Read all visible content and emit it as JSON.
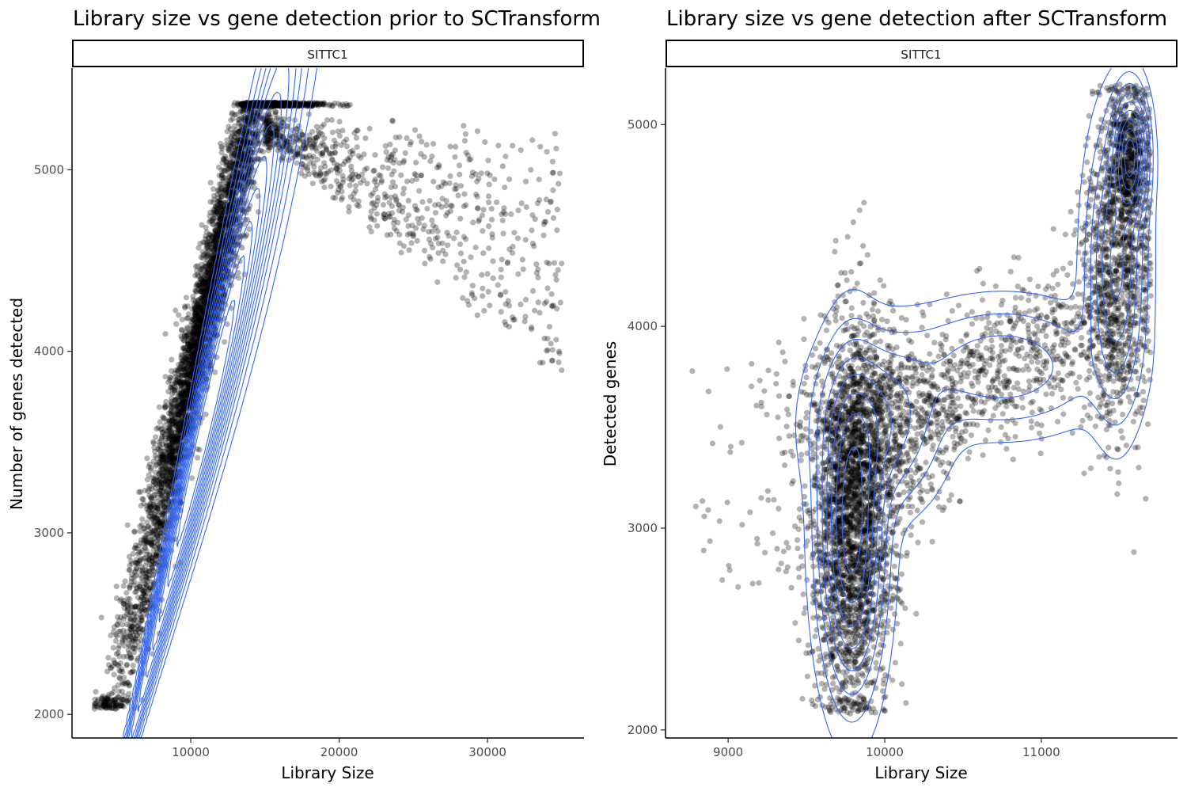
{
  "chart_data": [
    {
      "type": "scatter",
      "overlay": "2d-density-contours",
      "title": "Library size vs gene detection prior to SCTransform",
      "facet": "SITTC1",
      "xlabel": "Library Size",
      "ylabel": "Number of genes detected",
      "xlim": [
        2000,
        36500
      ],
      "ylim": [
        1870,
        5560
      ],
      "xticks": [
        10000,
        20000,
        30000
      ],
      "yticks": [
        2000,
        3000,
        4000,
        5000
      ],
      "xtick_labels": [
        "10000",
        "20000",
        "30000"
      ],
      "ytick_labels": [
        "2000",
        "3000",
        "4000",
        "5000"
      ],
      "grid": false,
      "point_color": "#000000",
      "point_alpha": 0.3,
      "contour_color": "#3366ff",
      "density": {
        "center": [
          11000,
          3600
        ],
        "slope_genes_per_count": 0.345,
        "sd_along": 2950,
        "sd_across": 190,
        "skew": 0.12
      },
      "contour_levels": [
        0.012,
        0.035,
        0.07,
        0.11,
        0.16,
        0.22,
        0.29,
        0.37,
        0.46,
        0.56,
        0.67,
        0.8
      ]
    },
    {
      "type": "scatter",
      "overlay": "2d-density-contours",
      "title": "Library size vs gene detection after SCTransform",
      "facet": "SITTC1",
      "xlabel": "Library Size",
      "ylabel": "Detected genes",
      "xlim": [
        8600,
        11870
      ],
      "ylim": [
        1960,
        5280
      ],
      "xticks": [
        9000,
        10000,
        11000
      ],
      "yticks": [
        2000,
        3000,
        4000,
        5000
      ],
      "xtick_labels": [
        "9000",
        "10000",
        "11000"
      ],
      "ytick_labels": [
        "2000",
        "3000",
        "4000",
        "5000"
      ],
      "grid": false,
      "point_color": "#000000",
      "point_alpha": 0.3,
      "contour_color": "#3366ff",
      "density": {
        "modes": [
          {
            "center": [
              9790,
              3000
            ],
            "sd": [
              110,
              420
            ],
            "weight": 0.42
          },
          {
            "center": [
              9950,
              3520
            ],
            "sd": [
              220,
              230
            ],
            "weight": 0.16
          },
          {
            "center": [
              10750,
              3800
            ],
            "sd": [
              380,
              180
            ],
            "weight": 0.13
          },
          {
            "center": [
              11480,
              4300
            ],
            "sd": [
              100,
              380
            ],
            "weight": 0.19
          },
          {
            "center": [
              11570,
              4850
            ],
            "sd": [
              60,
              170
            ],
            "weight": 0.1
          }
        ]
      },
      "contour_levels": [
        0.02,
        0.06,
        0.12,
        0.2,
        0.3,
        0.42,
        0.56,
        0.72,
        0.88
      ]
    }
  ]
}
